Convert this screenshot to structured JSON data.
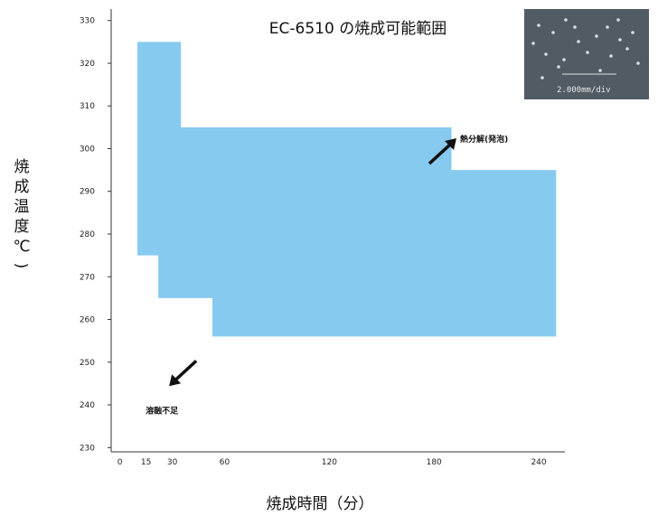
{
  "chart_data": {
    "type": "area",
    "title": "EC-6510 の焼成可能範囲",
    "xlabel": "焼成時間（分）",
    "ylabel": "焼成温度(℃)",
    "x_ticks": [
      0,
      15,
      30,
      60,
      120,
      180,
      240
    ],
    "y_ticks": [
      230,
      240,
      250,
      260,
      270,
      280,
      290,
      300,
      310,
      320,
      330
    ],
    "xlim": [
      -5,
      255
    ],
    "ylim": [
      229,
      331
    ],
    "grid": false,
    "region_color": "#87CAF0",
    "region": {
      "name": "焼成可能範囲",
      "upper_boundary": [
        {
          "x": 10,
          "y": 325
        },
        {
          "x": 35,
          "y": 325
        },
        {
          "x": 35,
          "y": 305
        },
        {
          "x": 190,
          "y": 305
        },
        {
          "x": 190,
          "y": 295
        },
        {
          "x": 250,
          "y": 295
        }
      ],
      "lower_boundary": [
        {
          "x": 10,
          "y": 275
        },
        {
          "x": 22,
          "y": 275
        },
        {
          "x": 22,
          "y": 265
        },
        {
          "x": 53,
          "y": 265
        },
        {
          "x": 53,
          "y": 256
        },
        {
          "x": 250,
          "y": 256
        }
      ]
    },
    "annotations": [
      {
        "text": "熱分解(発泡)",
        "x": 197,
        "y": 302,
        "arrow": "up-right"
      },
      {
        "text": "溶融不足",
        "x": 22,
        "y": 241,
        "arrow": "down-left"
      }
    ],
    "inset": {
      "text": "2.000mm/div"
    }
  }
}
